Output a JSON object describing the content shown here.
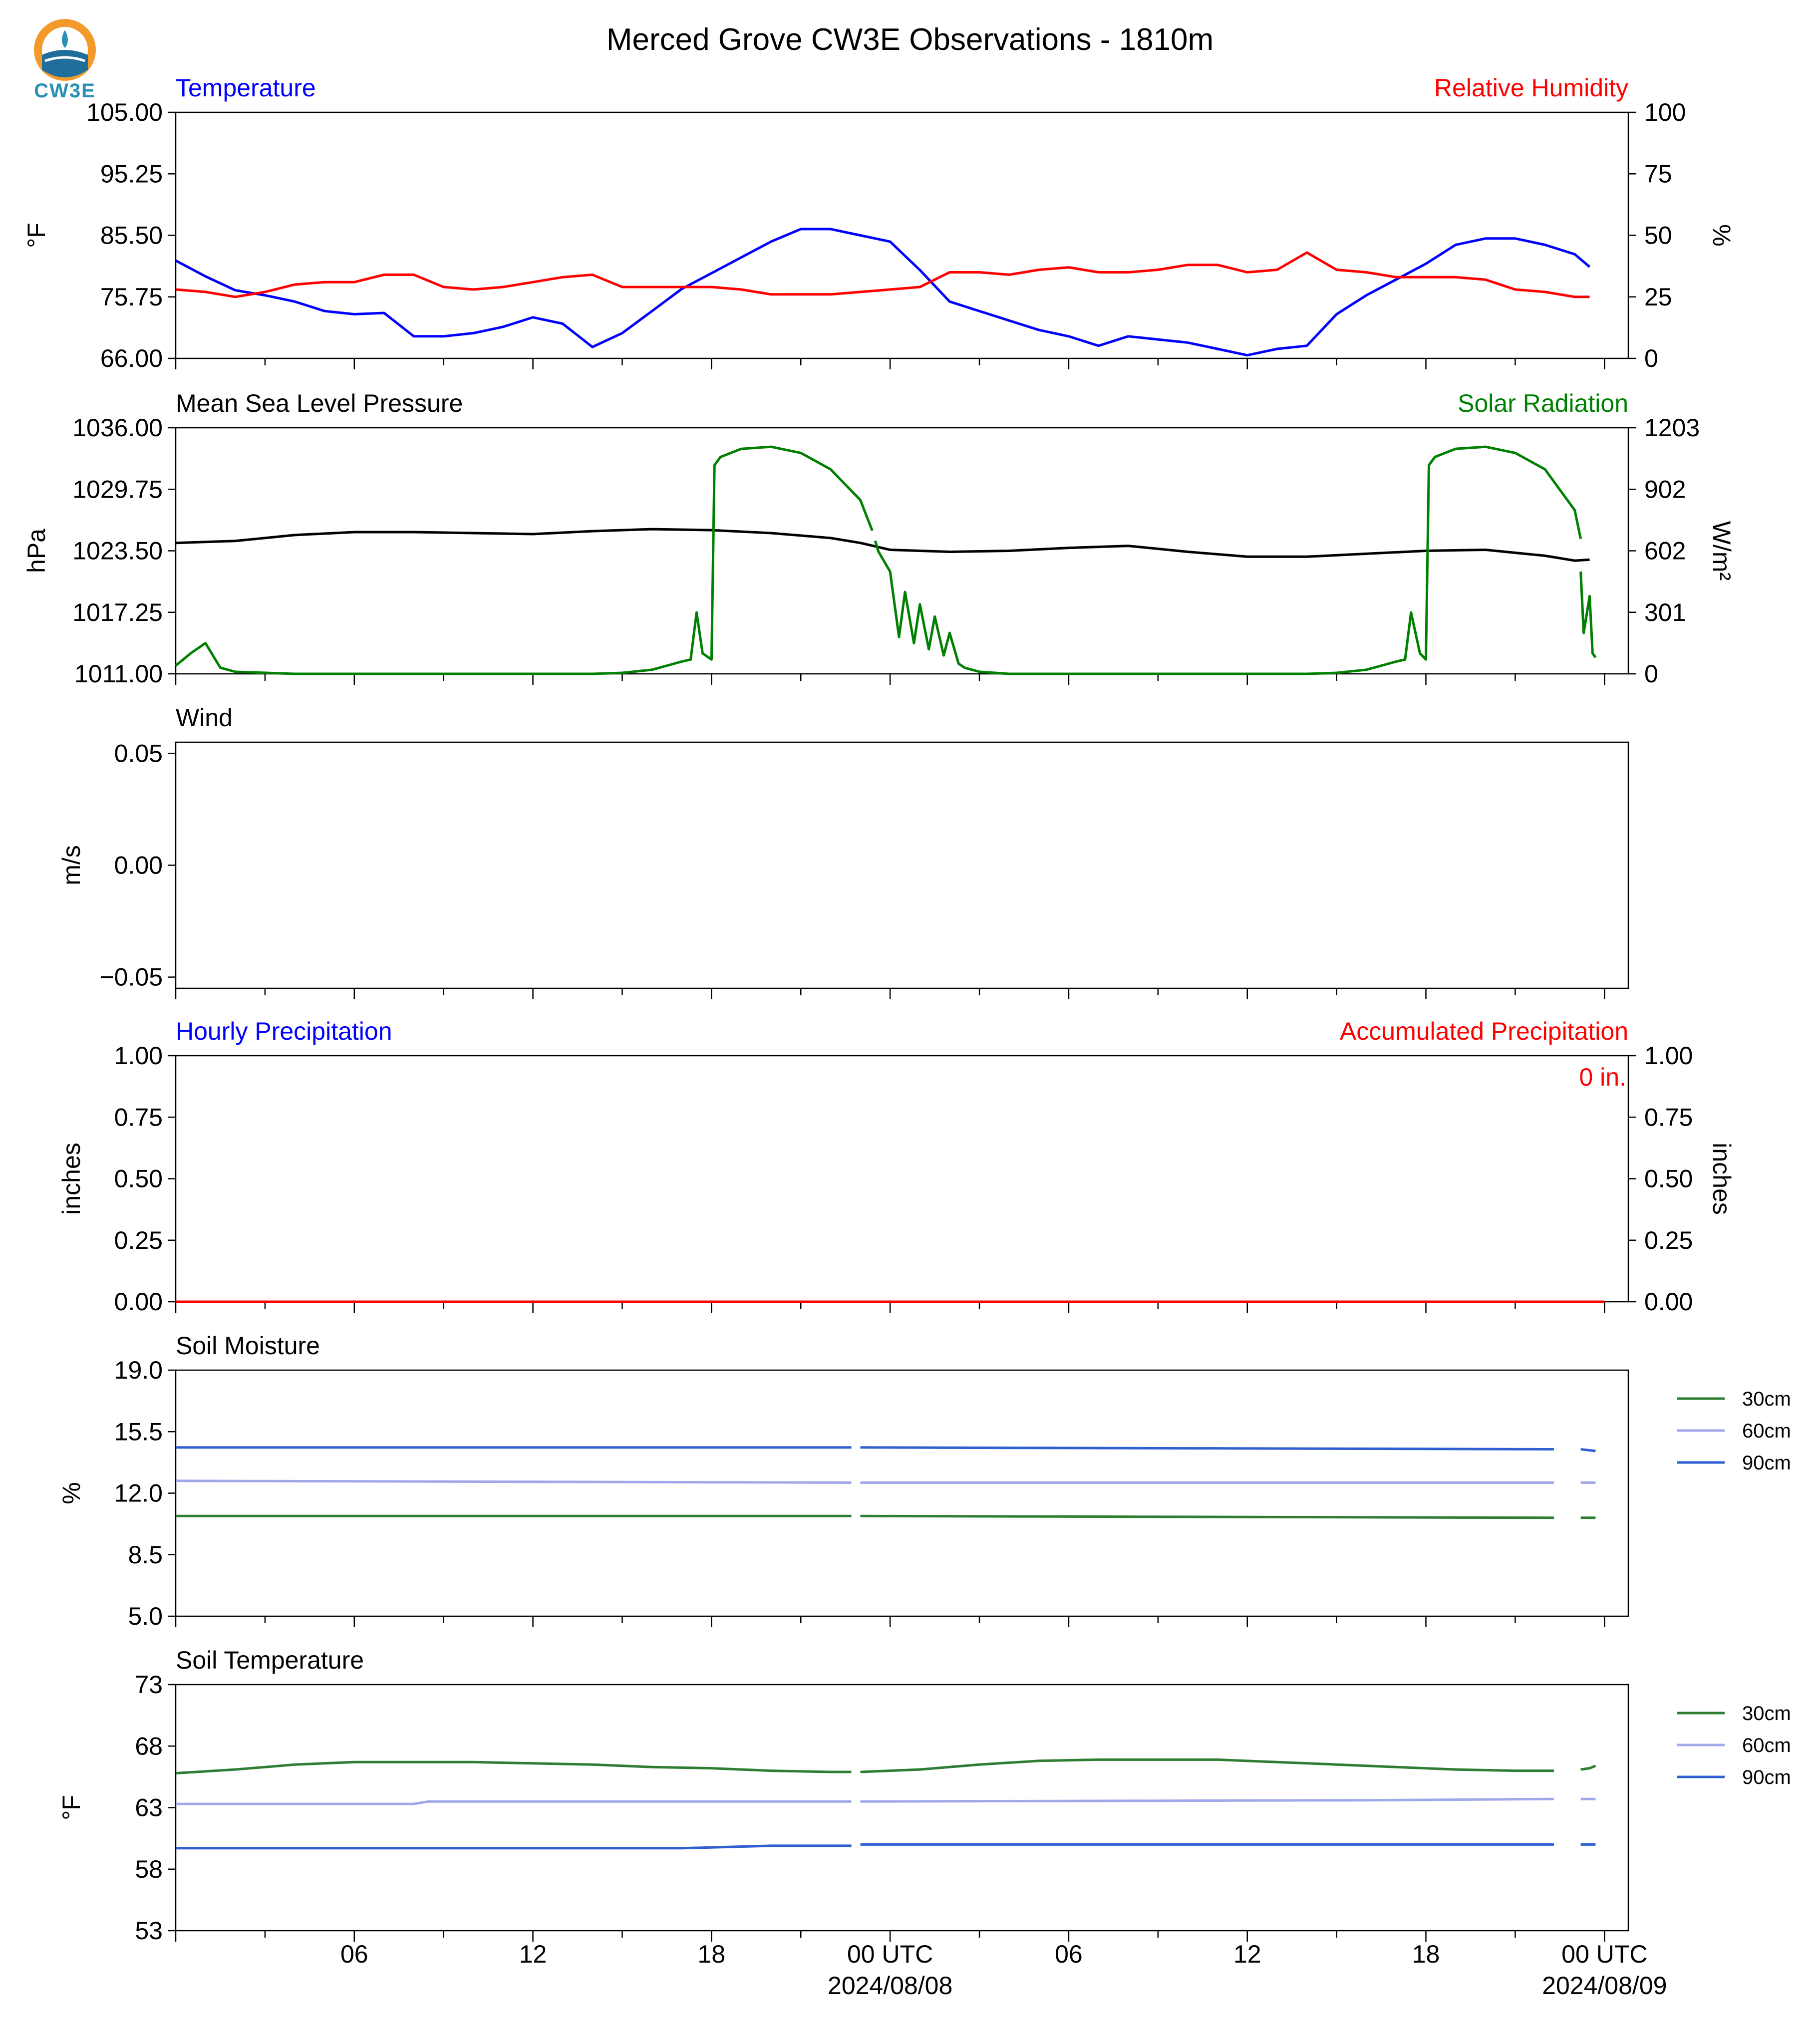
{
  "title": "Merced Grove CW3E Observations - 1810m",
  "logo_text": "CW3E",
  "x_axis": {
    "start": "2024-08-07T00:00",
    "end": "2024-08-09T00:00",
    "tick_labels": [
      "06",
      "12",
      "18",
      "00 UTC",
      "06",
      "12",
      "18",
      "00 UTC"
    ],
    "date_labels": [
      "2024/08/08",
      "2024/08/09"
    ]
  },
  "chart_data": [
    {
      "type": "line",
      "left_title": "Temperature",
      "right_title": "Relative Humidity",
      "left_title_color": "#0000ff",
      "right_title_color": "#ff0000",
      "ylabel": "°F",
      "ylabel_right": "%",
      "ylim": [
        66,
        105
      ],
      "yticks": [
        "105.00",
        "95.25",
        "85.50",
        "75.75",
        "66.00"
      ],
      "ylim_right": [
        0,
        100
      ],
      "yticks_right": [
        "100",
        "75",
        "50",
        "25",
        "0"
      ],
      "series": [
        {
          "color": "#0000ff",
          "axis": "left",
          "x": [
            0,
            1,
            2,
            3,
            4,
            5,
            6,
            7,
            8,
            9,
            10,
            11,
            12,
            13,
            14,
            15,
            16,
            17,
            18,
            19,
            20,
            21,
            22,
            23,
            24,
            25,
            26,
            27,
            28,
            29,
            30,
            31,
            32,
            33,
            34,
            35,
            36,
            37,
            38,
            39,
            40,
            41,
            42,
            43,
            44,
            45,
            46,
            47,
            47.5
          ],
          "y": [
            81.5,
            79,
            76.8,
            76,
            75,
            73.5,
            73,
            73.2,
            69.5,
            69.5,
            70,
            71,
            72.5,
            71.5,
            67.8,
            70,
            73.5,
            77,
            79.5,
            82,
            84.5,
            86.5,
            86.5,
            85.5,
            84.5,
            80,
            75,
            73.5,
            72,
            70.5,
            69.5,
            68,
            69.5,
            69,
            68.5,
            67.5,
            66.5,
            67.5,
            68,
            73,
            76,
            78.5,
            81,
            84,
            85,
            85,
            84,
            82.5,
            80.5
          ]
        },
        {
          "color": "#ff0000",
          "axis": "right",
          "x": [
            0,
            1,
            2,
            3,
            4,
            5,
            6,
            7,
            8,
            9,
            10,
            11,
            12,
            13,
            14,
            15,
            16,
            17,
            18,
            19,
            20,
            21,
            22,
            23,
            24,
            25,
            26,
            27,
            28,
            29,
            30,
            31,
            32,
            33,
            34,
            35,
            36,
            37,
            38,
            39,
            40,
            41,
            42,
            43,
            44,
            45,
            46,
            47,
            47.5
          ],
          "y": [
            28,
            27,
            25,
            27,
            30,
            31,
            31,
            34,
            34,
            29,
            28,
            29,
            31,
            33,
            34,
            29,
            29,
            29,
            29,
            28,
            26,
            26,
            26,
            27,
            28,
            29,
            35,
            35,
            34,
            36,
            37,
            35,
            35,
            36,
            38,
            38,
            35,
            36,
            43,
            36,
            35,
            33,
            33,
            33,
            32,
            28,
            27,
            25,
            25
          ]
        },
        {
          "color": "#ffffff",
          "axis": "left",
          "x": [],
          "y": []
        }
      ]
    },
    {
      "type": "line",
      "left_title": "Mean Sea Level Pressure",
      "right_title": "Solar Radiation",
      "left_title_color": "#000000",
      "right_title_color": "#008000",
      "ylabel": "hPa",
      "ylabel_right": "W/m²",
      "ylim": [
        1011,
        1036
      ],
      "yticks": [
        "1036.00",
        "1029.75",
        "1023.50",
        "1017.25",
        "1011.00"
      ],
      "ylim_right": [
        0,
        1203
      ],
      "yticks_right": [
        "1203",
        "902",
        "602",
        "301",
        "0"
      ],
      "series": [
        {
          "color": "#000000",
          "axis": "left",
          "x": [
            0,
            2,
            4,
            6,
            8,
            10,
            12,
            14,
            16,
            18,
            20,
            22,
            23,
            24,
            26,
            28,
            30,
            32,
            34,
            36,
            38,
            40,
            42,
            44,
            46,
            47,
            47.5
          ],
          "y": [
            1024.3,
            1024.5,
            1025.1,
            1025.4,
            1025.4,
            1025.3,
            1025.2,
            1025.5,
            1025.7,
            1025.6,
            1025.3,
            1024.8,
            1024.3,
            1023.6,
            1023.4,
            1023.5,
            1023.8,
            1024,
            1023.4,
            1022.9,
            1022.9,
            1023.2,
            1023.5,
            1023.6,
            1023,
            1022.5,
            1022.6
          ]
        },
        {
          "color": "#008000",
          "axis": "right",
          "x": [
            0,
            0.5,
            1,
            1.5,
            2,
            4,
            8,
            12,
            14,
            15,
            16,
            16.5,
            17,
            17.3,
            17.5,
            17.7,
            18,
            18.1,
            18.3,
            19,
            20,
            21,
            22,
            23,
            23.4
          ],
          "y": [
            40,
            100,
            150,
            30,
            10,
            0,
            0,
            0,
            0,
            5,
            20,
            40,
            60,
            70,
            300,
            100,
            70,
            1020,
            1060,
            1100,
            1110,
            1080,
            1000,
            850,
            700
          ]
        },
        {
          "color": "#008000",
          "axis": "right",
          "x": [
            23.5,
            23.6,
            24,
            24.3,
            24.5,
            24.8,
            25,
            25.3,
            25.5,
            25.8,
            26,
            26.3,
            26.5,
            27,
            28,
            32,
            36,
            38,
            39,
            40,
            40.5,
            41,
            41.3,
            41.5,
            41.8,
            42,
            42.1,
            42.3,
            43,
            44,
            45,
            46,
            47,
            47.2
          ],
          "y": [
            650,
            600,
            500,
            180,
            400,
            150,
            340,
            120,
            280,
            90,
            200,
            50,
            30,
            10,
            0,
            0,
            0,
            0,
            5,
            20,
            40,
            60,
            70,
            300,
            100,
            70,
            1020,
            1060,
            1100,
            1110,
            1080,
            1000,
            800,
            660
          ]
        },
        {
          "color": "#008000",
          "axis": "right",
          "x": [
            47.2,
            47.3,
            47.5,
            47.6,
            47.7
          ],
          "y": [
            500,
            200,
            380,
            100,
            80
          ]
        }
      ]
    },
    {
      "type": "line",
      "left_title": "Wind",
      "right_title": "",
      "left_title_color": "#000000",
      "right_title_color": "#000000",
      "ylabel": "m/s",
      "ylabel_right": "",
      "ylim": [
        -0.055,
        0.055
      ],
      "yticks": [
        "0.05",
        "0.00",
        "−0.05"
      ],
      "ytick_values": [
        0.05,
        0,
        -0.05
      ],
      "series": []
    },
    {
      "type": "line",
      "left_title": "Hourly Precipitation",
      "right_title": "Accumulated Precipitation",
      "left_title_color": "#0000ff",
      "right_title_color": "#ff0000",
      "ylabel": "inches",
      "ylabel_right": "inches",
      "ylim": [
        0,
        1
      ],
      "yticks": [
        "1.00",
        "0.75",
        "0.50",
        "0.25",
        "0.00"
      ],
      "ylim_right": [
        0,
        1
      ],
      "yticks_right": [
        "1.00",
        "0.75",
        "0.50",
        "0.25",
        "0.00"
      ],
      "annotation": "0 in.",
      "series": [
        {
          "color": "#ff0000",
          "axis": "right",
          "x": [
            0,
            48
          ],
          "y": [
            0,
            0
          ]
        }
      ]
    },
    {
      "type": "line",
      "left_title": "Soil Moisture",
      "right_title": "",
      "left_title_color": "#000000",
      "right_title_color": "#000000",
      "ylabel": "%",
      "ylabel_right": "",
      "ylim": [
        5,
        19
      ],
      "yticks": [
        "19.0",
        "15.5",
        "12.0",
        "8.5",
        "5.0"
      ],
      "legend": [
        "30cm",
        "60cm",
        "90cm"
      ],
      "series": [
        {
          "name": "30cm",
          "color": "#2e7d32",
          "x": [
            0,
            22.7
          ],
          "y": [
            10.7,
            10.7
          ]
        },
        {
          "name": "30cm",
          "color": "#2e7d32",
          "x": [
            23,
            46.3
          ],
          "y": [
            10.7,
            10.6
          ]
        },
        {
          "name": "30cm",
          "color": "#2e7d32",
          "x": [
            47.2,
            47.7
          ],
          "y": [
            10.6,
            10.6
          ]
        },
        {
          "name": "60cm",
          "color": "#9fa8e8",
          "x": [
            0,
            22.7
          ],
          "y": [
            12.7,
            12.6
          ]
        },
        {
          "name": "60cm",
          "color": "#9fa8e8",
          "x": [
            23,
            46.3
          ],
          "y": [
            12.6,
            12.6
          ]
        },
        {
          "name": "60cm",
          "color": "#9fa8e8",
          "x": [
            47.2,
            47.7
          ],
          "y": [
            12.6,
            12.6
          ]
        },
        {
          "name": "90cm",
          "color": "#2f5fd0",
          "x": [
            0,
            22.7
          ],
          "y": [
            14.6,
            14.6
          ]
        },
        {
          "name": "90cm",
          "color": "#2f5fd0",
          "x": [
            23,
            46.3
          ],
          "y": [
            14.6,
            14.5
          ]
        },
        {
          "name": "90cm",
          "color": "#2f5fd0",
          "x": [
            47.2,
            47.7
          ],
          "y": [
            14.5,
            14.4
          ]
        }
      ]
    },
    {
      "type": "line",
      "left_title": "Soil Temperature",
      "right_title": "",
      "left_title_color": "#000000",
      "right_title_color": "#000000",
      "ylabel": "°F",
      "ylabel_right": "",
      "ylim": [
        53,
        73
      ],
      "yticks": [
        "73",
        "68",
        "63",
        "58",
        "53"
      ],
      "legend": [
        "30cm",
        "60cm",
        "90cm"
      ],
      "series": [
        {
          "name": "30cm",
          "color": "#2e7d32",
          "x": [
            0,
            2,
            3,
            4,
            6,
            8,
            10,
            12,
            14,
            16,
            18,
            20,
            22,
            22.7
          ],
          "y": [
            65.8,
            66.1,
            66.3,
            66.5,
            66.7,
            66.7,
            66.7,
            66.6,
            66.5,
            66.3,
            66.2,
            66,
            65.9,
            65.9
          ]
        },
        {
          "name": "30cm",
          "color": "#2e7d32",
          "x": [
            23,
            25,
            27,
            29,
            31,
            33,
            35,
            37,
            39,
            41,
            43,
            45,
            46.3
          ],
          "y": [
            65.9,
            66.1,
            66.5,
            66.8,
            66.9,
            66.9,
            66.9,
            66.7,
            66.5,
            66.3,
            66.1,
            66.0,
            66.0
          ]
        },
        {
          "name": "30cm",
          "color": "#2e7d32",
          "x": [
            47.2,
            47.5,
            47.7
          ],
          "y": [
            66.1,
            66.2,
            66.4
          ]
        },
        {
          "name": "60cm",
          "color": "#9fa8e8",
          "x": [
            0,
            8,
            8.5,
            20,
            22.7
          ],
          "y": [
            63.3,
            63.3,
            63.5,
            63.5,
            63.5
          ]
        },
        {
          "name": "60cm",
          "color": "#9fa8e8",
          "x": [
            23,
            40,
            46.3
          ],
          "y": [
            63.5,
            63.6,
            63.7
          ]
        },
        {
          "name": "60cm",
          "color": "#9fa8e8",
          "x": [
            47.2,
            47.7
          ],
          "y": [
            63.7,
            63.7
          ]
        },
        {
          "name": "90cm",
          "color": "#2f5fd0",
          "x": [
            0,
            17,
            20,
            22.7
          ],
          "y": [
            59.7,
            59.7,
            59.9,
            59.9
          ]
        },
        {
          "name": "90cm",
          "color": "#2f5fd0",
          "x": [
            23,
            46.3
          ],
          "y": [
            60,
            60
          ]
        },
        {
          "name": "90cm",
          "color": "#2f5fd0",
          "x": [
            47.2,
            47.7
          ],
          "y": [
            60,
            60
          ]
        }
      ]
    }
  ]
}
